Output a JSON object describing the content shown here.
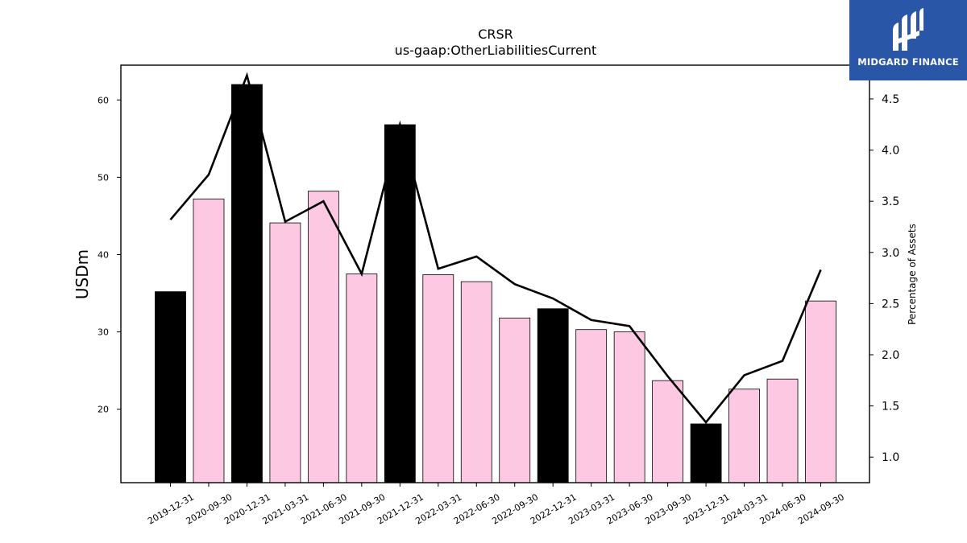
{
  "chart_data": {
    "type": "bar",
    "title": "CRSR",
    "subtitle": "us-gaap:OtherLiabilitiesCurrent",
    "ylabel": "USDm",
    "y2label": "Percentage of Assets",
    "ylim": [
      10.5,
      64.5
    ],
    "y2lim": [
      0.75,
      4.83
    ],
    "yticks": [
      20,
      30,
      40,
      50,
      60
    ],
    "y2ticks": [
      1.0,
      1.5,
      2.0,
      2.5,
      3.0,
      3.5,
      4.0,
      4.5
    ],
    "categories": [
      "2019-12-31",
      "2020-09-30",
      "2020-12-31",
      "2021-03-31",
      "2021-06-30",
      "2021-09-30",
      "2021-12-31",
      "2022-03-31",
      "2022-06-30",
      "2022-09-30",
      "2022-12-31",
      "2023-03-31",
      "2023-06-30",
      "2023-09-30",
      "2023-12-31",
      "2024-03-31",
      "2024-06-30",
      "2024-09-30"
    ],
    "series": [
      {
        "kind": "bar",
        "axis": "left",
        "values": [
          35.2,
          47.2,
          62.0,
          44.1,
          48.2,
          37.5,
          56.8,
          37.4,
          36.5,
          31.8,
          33.0,
          30.3,
          30.0,
          23.7,
          18.1,
          22.6,
          23.9,
          34.0
        ],
        "colors": [
          "#000000",
          "#fcc8e2",
          "#000000",
          "#fcc8e2",
          "#fcc8e2",
          "#fcc8e2",
          "#000000",
          "#fcc8e2",
          "#fcc8e2",
          "#fcc8e2",
          "#000000",
          "#fcc8e2",
          "#fcc8e2",
          "#fcc8e2",
          "#000000",
          "#fcc8e2",
          "#fcc8e2",
          "#fcc8e2"
        ]
      },
      {
        "kind": "line",
        "axis": "right",
        "color": "#000000",
        "values": [
          3.32,
          3.76,
          4.73,
          3.3,
          3.5,
          2.79,
          4.25,
          2.84,
          2.96,
          2.69,
          2.55,
          2.34,
          2.28,
          1.79,
          1.34,
          1.8,
          1.94,
          2.83
        ]
      }
    ],
    "grid": false
  },
  "logo": {
    "text": "MIDGARD FINANCE",
    "background": "#2a56a8"
  }
}
